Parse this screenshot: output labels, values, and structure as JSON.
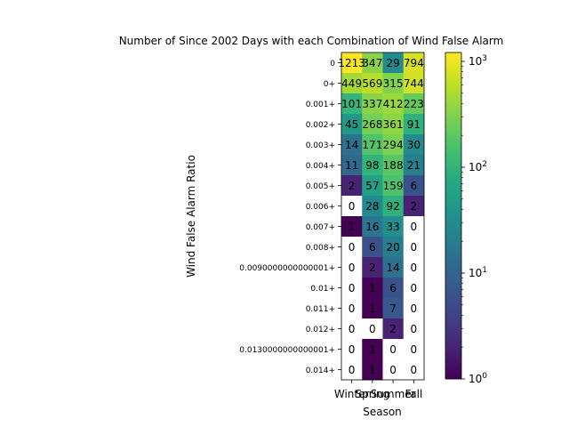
{
  "chart_data": {
    "type": "heatmap",
    "title": "Number of Since 2002 Days with each Combination of Wind False Alarm",
    "xlabel": "Season",
    "ylabel": "Wind False Alarm Ratio",
    "x_categories": [
      "Winter",
      "Spring",
      "Summer",
      "Fall"
    ],
    "y_categories": [
      "0",
      "0+",
      "0.001+",
      "0.002+",
      "0.003+",
      "0.004+",
      "0.005+",
      "0.006+",
      "0.007+",
      "0.008+",
      "0.0090000000000001+",
      "0.01+",
      "0.011+",
      "0.012+",
      "0.0130000000000001+",
      "0.014+"
    ],
    "values": [
      [
        1213,
        347,
        29,
        794
      ],
      [
        449,
        569,
        315,
        744
      ],
      [
        101,
        337,
        412,
        223
      ],
      [
        45,
        268,
        361,
        91
      ],
      [
        14,
        171,
        294,
        30
      ],
      [
        11,
        98,
        188,
        21
      ],
      [
        2,
        57,
        159,
        6
      ],
      [
        0,
        28,
        92,
        2
      ],
      [
        1,
        16,
        33,
        0
      ],
      [
        0,
        6,
        20,
        0
      ],
      [
        0,
        2,
        14,
        0
      ],
      [
        0,
        1,
        6,
        0
      ],
      [
        0,
        1,
        7,
        0
      ],
      [
        0,
        0,
        2,
        0
      ],
      [
        0,
        1,
        0,
        0
      ],
      [
        0,
        1,
        0,
        0
      ]
    ],
    "color_scale": "log",
    "colormap": "viridis",
    "zero_color": "#ffffff",
    "vlim": [
      1,
      1213
    ],
    "colorbar_ticks": [
      {
        "value": 1,
        "label": "10^0"
      },
      {
        "value": 10,
        "label": "10^1"
      },
      {
        "value": 100,
        "label": "10^2"
      },
      {
        "value": 1000,
        "label": "10^3"
      }
    ]
  }
}
